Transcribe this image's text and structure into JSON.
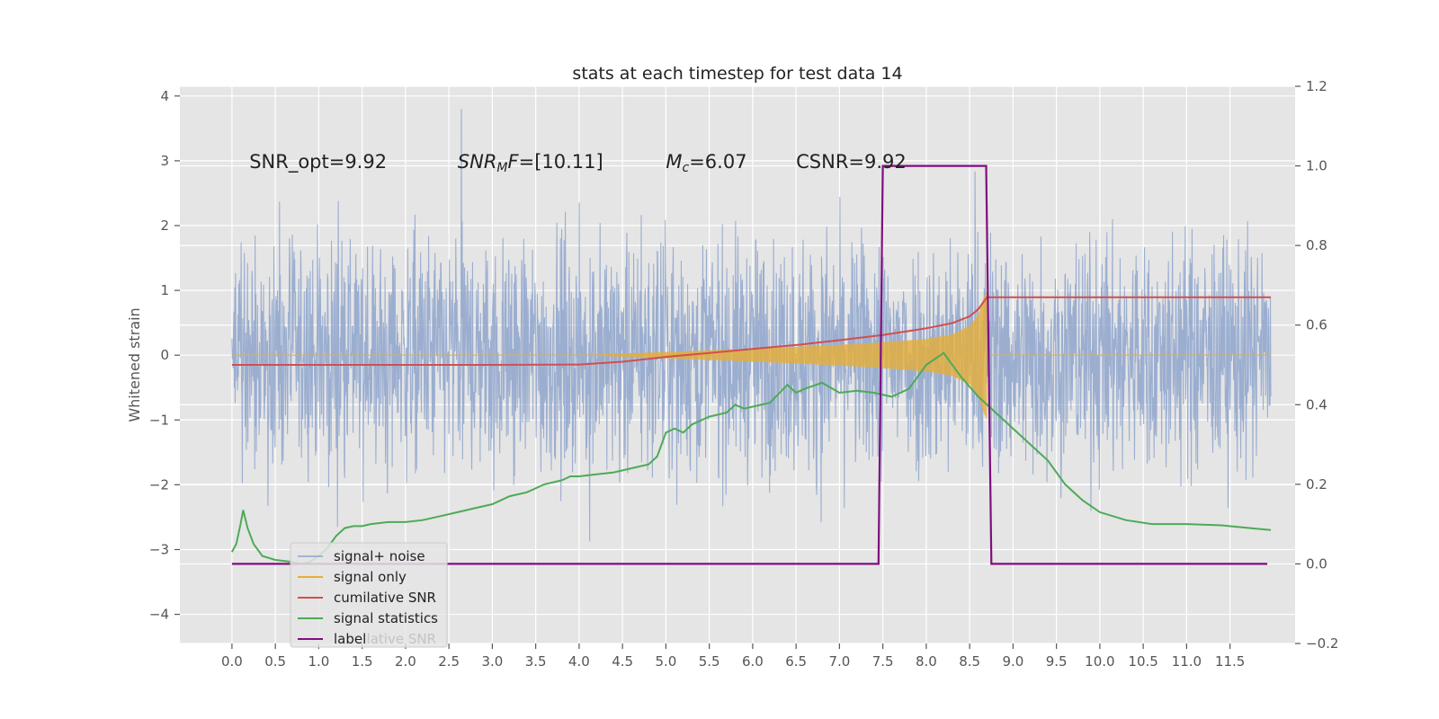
{
  "chart_data": {
    "type": "line",
    "title": "stats at each timestep for test data 14",
    "ylabel_left": "Whitened strain",
    "xlim": [
      -0.6,
      12.25
    ],
    "ylim_left": [
      -4.45,
      4.15
    ],
    "ylim_right": [
      -0.2,
      1.2
    ],
    "x_ticks": [
      0.0,
      0.5,
      1.0,
      1.5,
      2.0,
      2.5,
      3.0,
      3.5,
      4.0,
      4.5,
      5.0,
      5.5,
      6.0,
      6.5,
      7.0,
      7.5,
      8.0,
      8.5,
      9.0,
      9.5,
      10.0,
      10.5,
      11.0,
      11.5
    ],
    "x_tick_labels": [
      "0.0",
      "0.5",
      "1.0",
      "1.5",
      "2.0",
      "2.5",
      "3.0",
      "3.5",
      "4.0",
      "4.5",
      "5.0",
      "5.5",
      "6.0",
      "6.5",
      "7.0",
      "7.5",
      "8.0",
      "8.5",
      "9.0",
      "9.5",
      "10.0",
      "10.5",
      "11.0",
      "11.5"
    ],
    "y_left_ticks": [
      4,
      3,
      2,
      1,
      0,
      -1,
      -2,
      -3,
      -4
    ],
    "y_left_tick_labels": [
      "4",
      "3",
      "2",
      "1",
      "0",
      "−1",
      "−2",
      "−3",
      "−4"
    ],
    "y_right_ticks": [
      1.2,
      1.0,
      0.8,
      0.6,
      0.4,
      0.2,
      0.0,
      -0.2
    ],
    "y_right_tick_labels": [
      "1.2",
      "1.0",
      "0.8",
      "0.6",
      "0.4",
      "0.2",
      "0.0",
      "−0.2"
    ],
    "grid": true,
    "legend_position": "lower-left",
    "annotations": [
      {
        "text": "SNR_opt=9.92",
        "x": 0.2,
        "y": 3.0
      },
      {
        "text": "SNR_MF=[10.11]",
        "x": 2.6,
        "y": 3.0
      },
      {
        "text": "M_c=6.07",
        "x": 5.0,
        "y": 3.0
      },
      {
        "text": "CSNR=9.92",
        "x": 6.5,
        "y": 3.0
      }
    ],
    "hidden_legend_text": "cumilative SNR",
    "colors": {
      "background": "#e5e5e5",
      "grid": "#ffffff",
      "noise": "#8ea4cc",
      "signal": "#e5ae38",
      "cumulative_snr": "#d04f4f",
      "signal_statistics": "#4daa57",
      "label": "#7f0f7f"
    },
    "series": [
      {
        "name": "signal+ noise",
        "axis": "left",
        "x_range": [
          0.0,
          11.97
        ],
        "envelope": "noise amplitude approx ±2.1, spikes to ±3.8"
      },
      {
        "name": "signal only",
        "axis": "left",
        "x": [
          4.0,
          5.0,
          6.0,
          7.0,
          7.5,
          8.0,
          8.3,
          8.5,
          8.6,
          8.65,
          8.7
        ],
        "amplitude": [
          0.0,
          0.05,
          0.1,
          0.16,
          0.2,
          0.25,
          0.32,
          0.45,
          0.62,
          0.85,
          1.0
        ]
      },
      {
        "name": "cumilative SNR",
        "axis": "right",
        "x": [
          0.0,
          1.0,
          2.0,
          3.0,
          4.0,
          4.5,
          5.0,
          5.5,
          6.0,
          6.5,
          7.0,
          7.5,
          8.0,
          8.3,
          8.5,
          8.6,
          8.7,
          11.97
        ],
        "values": [
          0.5,
          0.5,
          0.5,
          0.5,
          0.501,
          0.508,
          0.52,
          0.53,
          0.54,
          0.55,
          0.562,
          0.575,
          0.592,
          0.605,
          0.622,
          0.64,
          0.67,
          0.67
        ]
      },
      {
        "name": "signal statistics",
        "axis": "right",
        "x": [
          0.0,
          0.05,
          0.1,
          0.13,
          0.18,
          0.25,
          0.35,
          0.5,
          0.7,
          0.8,
          0.9,
          1.0,
          1.1,
          1.2,
          1.3,
          1.4,
          1.5,
          1.6,
          1.8,
          2.0,
          2.2,
          2.4,
          2.6,
          2.8,
          3.0,
          3.2,
          3.4,
          3.6,
          3.8,
          3.9,
          4.0,
          4.2,
          4.4,
          4.6,
          4.8,
          4.9,
          5.0,
          5.1,
          5.2,
          5.3,
          5.5,
          5.7,
          5.8,
          5.9,
          6.0,
          6.2,
          6.4,
          6.5,
          6.6,
          6.8,
          7.0,
          7.2,
          7.4,
          7.6,
          7.8,
          8.0,
          8.2,
          8.4,
          8.6,
          8.8,
          9.0,
          9.2,
          9.4,
          9.6,
          9.8,
          10.0,
          10.3,
          10.6,
          11.0,
          11.4,
          11.97
        ],
        "values": [
          0.03,
          0.05,
          0.1,
          0.135,
          0.09,
          0.05,
          0.02,
          0.01,
          0.005,
          0.0,
          0.005,
          0.02,
          0.04,
          0.07,
          0.09,
          0.095,
          0.095,
          0.1,
          0.105,
          0.105,
          0.11,
          0.12,
          0.13,
          0.14,
          0.15,
          0.17,
          0.18,
          0.2,
          0.21,
          0.22,
          0.22,
          0.225,
          0.23,
          0.24,
          0.25,
          0.27,
          0.33,
          0.34,
          0.33,
          0.35,
          0.37,
          0.38,
          0.4,
          0.39,
          0.395,
          0.405,
          0.45,
          0.43,
          0.44,
          0.455,
          0.43,
          0.435,
          0.43,
          0.42,
          0.44,
          0.5,
          0.53,
          0.47,
          0.42,
          0.38,
          0.34,
          0.3,
          0.26,
          0.2,
          0.16,
          0.13,
          0.11,
          0.1,
          0.1,
          0.097,
          0.085
        ]
      },
      {
        "name": "label",
        "axis": "right",
        "x": [
          0.0,
          7.45,
          7.5,
          8.69,
          8.75,
          11.93
        ],
        "values": [
          0.0,
          0.0,
          1.0,
          1.0,
          0.0,
          0.0
        ]
      }
    ]
  }
}
